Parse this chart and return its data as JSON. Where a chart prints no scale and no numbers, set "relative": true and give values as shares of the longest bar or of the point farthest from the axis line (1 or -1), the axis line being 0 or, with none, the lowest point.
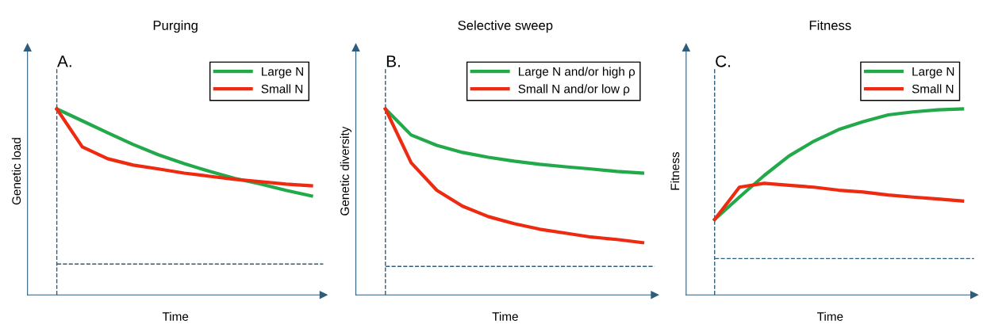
{
  "chart_data": [
    {
      "type": "line",
      "title": "Purging",
      "xlabel": "Time",
      "ylabel": "Genetic load",
      "annotations": [
        "A."
      ],
      "relative": true,
      "legend": "top right",
      "grid": false,
      "marker": "none",
      "line_style": "solid",
      "categories": [
        null,
        null,
        null,
        null,
        null,
        null,
        null,
        null,
        null,
        null,
        null
      ],
      "ref_lines": [
        {
          "axis": "y",
          "value": 0.166,
          "color": "#2e5d7d",
          "line_style": "dashed"
        }
      ],
      "series": [
        {
          "name": "Large N",
          "color": "#22aa4a",
          "values": [
            1.0,
            0.936,
            0.872,
            0.809,
            0.753,
            0.706,
            0.664,
            0.626,
            0.596,
            0.562,
            0.532
          ]
        },
        {
          "name": "Small N",
          "color": "#ee2a10",
          "values": [
            1.0,
            0.796,
            0.732,
            0.698,
            0.677,
            0.655,
            0.638,
            0.621,
            0.609,
            0.596,
            0.587
          ]
        }
      ]
    },
    {
      "type": "line",
      "title": "Selective sweep",
      "xlabel": "Time",
      "ylabel": "Genetic diversity",
      "annotations": [
        "B."
      ],
      "relative": true,
      "legend": "top right",
      "grid": false,
      "marker": "none",
      "line_style": "solid",
      "categories": [
        null,
        null,
        null,
        null,
        null,
        null,
        null,
        null,
        null,
        null,
        null
      ],
      "ref_lines": [
        {
          "axis": "y",
          "value": 0.153,
          "color": "#2e5d7d",
          "line_style": "dashed"
        }
      ],
      "series": [
        {
          "name": "Large N and/or high ρ",
          "color": "#22aa4a",
          "values": [
            1.0,
            0.86,
            0.804,
            0.766,
            0.74,
            0.719,
            0.702,
            0.689,
            0.677,
            0.664,
            0.655
          ]
        },
        {
          "name": "Small N and/or low ρ",
          "color": "#ee2a10",
          "values": [
            1.0,
            0.711,
            0.562,
            0.477,
            0.421,
            0.383,
            0.353,
            0.332,
            0.311,
            0.298,
            0.281
          ]
        }
      ]
    },
    {
      "type": "line",
      "title": "Fitness",
      "xlabel": "Time",
      "ylabel": "Fitness",
      "annotations": [
        "C."
      ],
      "relative": true,
      "legend": "top right",
      "grid": false,
      "marker": "none",
      "line_style": "solid",
      "categories": [
        null,
        null,
        null,
        null,
        null,
        null,
        null,
        null,
        null,
        null,
        null
      ],
      "ref_lines": [
        {
          "axis": "y",
          "value": 0.195,
          "color": "#2e5d7d",
          "line_style": "dashed"
        }
      ],
      "series": [
        {
          "name": "Large N",
          "color": "#22aa4a",
          "values": [
            0.405,
            0.526,
            0.642,
            0.747,
            0.826,
            0.889,
            0.932,
            0.968,
            0.984,
            0.995,
            1.0
          ]
        },
        {
          "name": "Small N",
          "color": "#ee2a10",
          "values": [
            0.405,
            0.579,
            0.6,
            0.589,
            0.579,
            0.563,
            0.553,
            0.537,
            0.526,
            0.516,
            0.505
          ]
        }
      ]
    }
  ]
}
